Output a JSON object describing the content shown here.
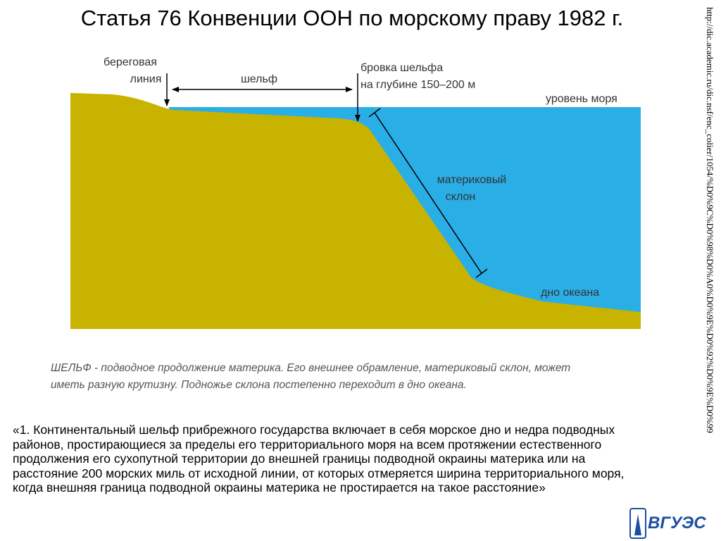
{
  "title": "Статья 76 Конвенции ООН по морскому праву 1982 г.",
  "diagram": {
    "coastline": [
      "береговая",
      "линия"
    ],
    "shelf": "шельф",
    "shelf_edge": [
      "бровка шельфа",
      "на глубине 150–200 м"
    ],
    "sea_level": "уровень моря",
    "slope": [
      "материковый",
      "склон"
    ],
    "ocean_floor": "дно океана"
  },
  "caption": [
    "ШЕЛЬФ - подводное продолжение материка. Его внешнее обрамление, материковый склон, может",
    "иметь разную крутизну. Подножье склона постепенно переходит в дно океана."
  ],
  "paragraph": [
    "«1. Континентальный шельф прибрежного государства включает в себя морское дно и недра подводных",
    "районов, простирающиеся за пределы его территориального моря на всем протяжении естественного",
    "продолжения его сухопутной территории до внешней границы подводной окраины материка или на",
    "расстояние 200 морских миль от исходной линии, от которых отмеряется ширина территориального моря,",
    "когда внешняя граница подводной окраины материка не простирается на такое расстояние»"
  ],
  "url": "http://dic.academic.ru/dic.nsf/enc_colier/1054/%D0%9C%D0%98%D0%A0%D0%9E%D0%92%D0%9E%D0%99",
  "logo": "ВГУЭС"
}
